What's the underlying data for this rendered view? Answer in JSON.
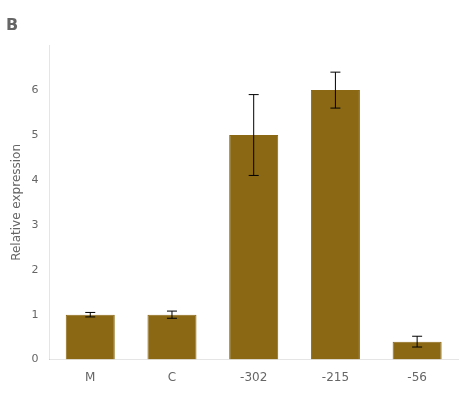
{
  "chart_data": {
    "type": "bar",
    "title": "B",
    "categories": [
      "M",
      "C",
      "-302",
      "-215",
      "-56"
    ],
    "values": [
      1.0,
      1.0,
      5.0,
      6.0,
      0.4
    ],
    "errors": [
      0.05,
      0.08,
      0.9,
      0.4,
      0.12
    ],
    "color": "#8B6914",
    "ylabel": "Relative expression",
    "ylim": [
      0,
      7
    ],
    "yticks": [
      0,
      1,
      2,
      3,
      4,
      5,
      6
    ],
    "grid": false
  }
}
